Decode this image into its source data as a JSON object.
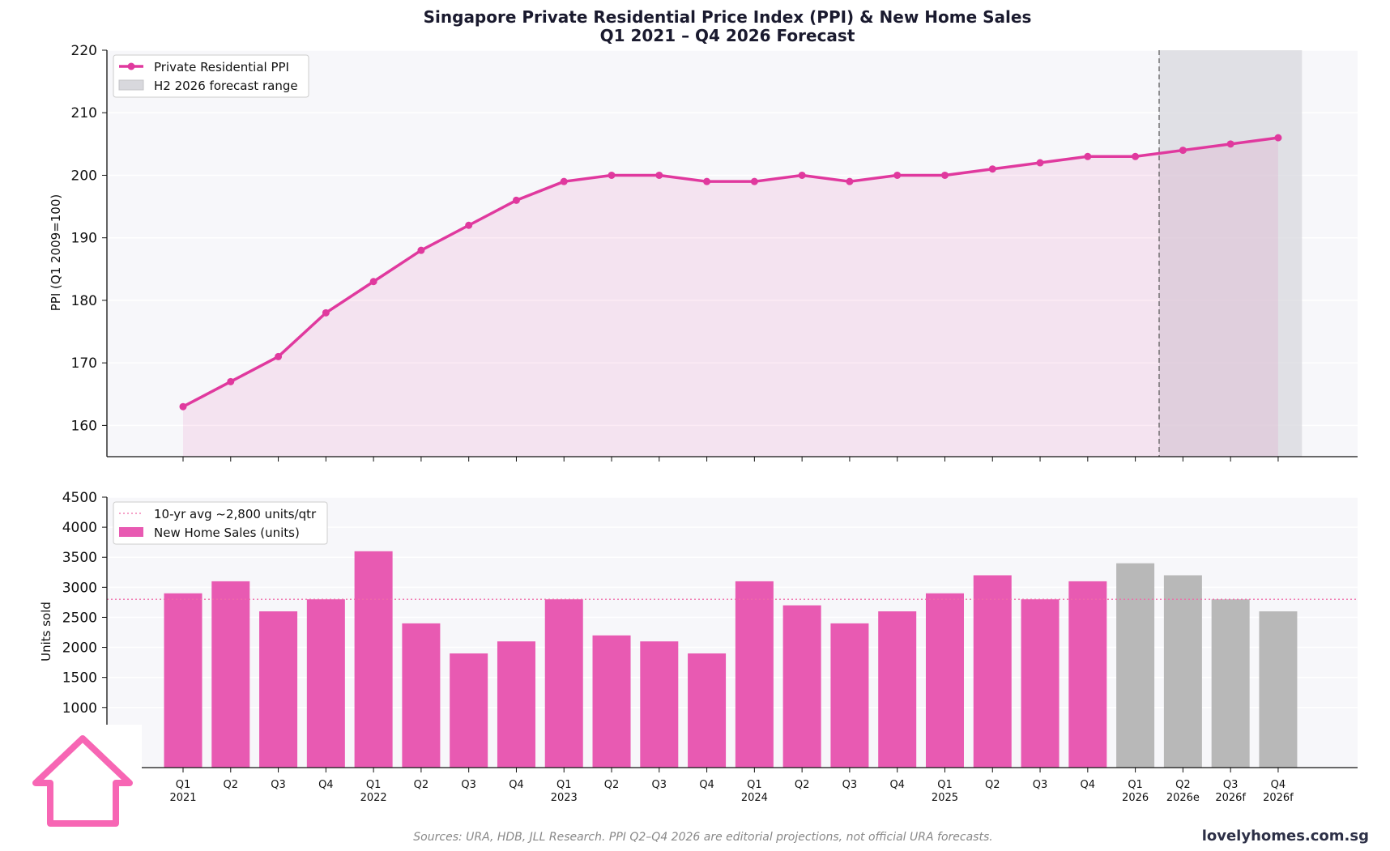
{
  "chart_data": [
    {
      "type": "line",
      "title": "Singapore Private Residential Price Index (PPI) & New Home Sales",
      "subtitle": "Q1 2021 – Q4 2026 Forecast",
      "ylabel": "PPI (Q1 2009=100)",
      "ylim": [
        155,
        220
      ],
      "yticks": [
        160,
        170,
        180,
        190,
        200,
        210,
        220
      ],
      "grid": true,
      "legend_placement": "top-left",
      "series": [
        {
          "name": "Private Residential PPI",
          "color": "#e0399e",
          "values": [
            163,
            167,
            171,
            178,
            183,
            188,
            192,
            196,
            199,
            200,
            200,
            199,
            199,
            200,
            199,
            200,
            200,
            201,
            202,
            203,
            203,
            204,
            205,
            206
          ]
        }
      ],
      "forecast_range": {
        "label": "H2 2026 forecast range",
        "start_index": 20.5,
        "end_index": 23.5
      }
    },
    {
      "type": "bar",
      "ylabel": "Units sold",
      "ylim": [
        0,
        4500
      ],
      "yticks": [
        1000,
        1500,
        2000,
        2500,
        3000,
        3500,
        4000,
        4500
      ],
      "grid": true,
      "legend_placement": "top-left",
      "categories": [
        "Q1\n2021",
        "Q2",
        "Q3",
        "Q4",
        "Q1\n2022",
        "Q2",
        "Q3",
        "Q4",
        "Q1\n2023",
        "Q2",
        "Q3",
        "Q4",
        "Q1\n2024",
        "Q2",
        "Q3",
        "Q4",
        "Q1\n2025",
        "Q2",
        "Q3",
        "Q4",
        "Q1\n2026",
        "Q2\n2026e",
        "Q3\n2026f",
        "Q4\n2026f"
      ],
      "series": [
        {
          "name": "New Home Sales (units)",
          "color": "#e85ab2",
          "forecast_color": "#b8b8b8",
          "forecast_from_index": 20,
          "values": [
            2900,
            3100,
            2600,
            2800,
            3600,
            2400,
            1900,
            2100,
            2800,
            2200,
            2100,
            1900,
            3100,
            2700,
            2400,
            2600,
            2900,
            3200,
            2800,
            3100,
            3400,
            3200,
            2800,
            2600
          ]
        }
      ],
      "reference_line": {
        "label": "10-yr avg ~2,800 units/qtr",
        "value": 2800,
        "color": "#f06aa8"
      }
    }
  ],
  "footer": {
    "source": "Sources: URA, HDB, JLL Research. PPI Q2–Q4 2026 are editorial projections, not official URA forecasts.",
    "brand": "lovelyhomes.com.sg"
  },
  "logo": {
    "icon": "house-icon",
    "color": "#f766b4"
  }
}
